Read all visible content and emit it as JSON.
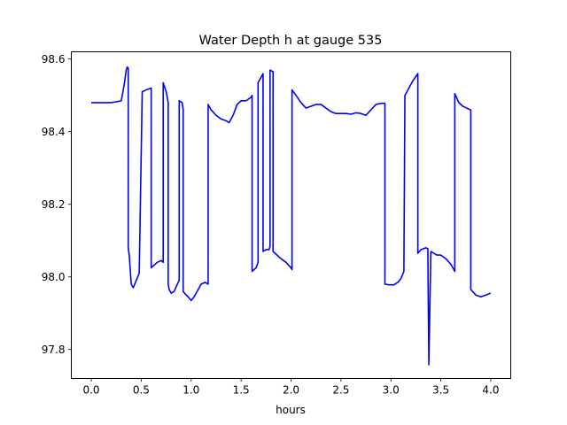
{
  "chart_data": {
    "type": "line",
    "title": "Water Depth h at gauge 535",
    "xlabel": "hours",
    "ylabel": "",
    "xlim": [
      -0.2,
      4.2
    ],
    "ylim": [
      97.72,
      98.62
    ],
    "xticks": [
      0.0,
      0.5,
      1.0,
      1.5,
      2.0,
      2.5,
      3.0,
      3.5,
      4.0
    ],
    "xtick_labels": [
      "0.0",
      "0.5",
      "1.0",
      "1.5",
      "2.0",
      "2.5",
      "3.0",
      "3.5",
      "4.0"
    ],
    "yticks": [
      97.8,
      98.0,
      98.2,
      98.4,
      98.6
    ],
    "ytick_labels": [
      "97.8",
      "98.0",
      "98.2",
      "98.4",
      "98.6"
    ],
    "grid": false,
    "series": [
      {
        "color": "#0000ff",
        "x": [
          0.0,
          0.1,
          0.2,
          0.3,
          0.33,
          0.35,
          0.36,
          0.37,
          0.37,
          0.38,
          0.39,
          0.4,
          0.42,
          0.45,
          0.48,
          0.51,
          0.51,
          0.55,
          0.6,
          0.6,
          0.62,
          0.66,
          0.7,
          0.72,
          0.72,
          0.75,
          0.77,
          0.77,
          0.78,
          0.8,
          0.83,
          0.87,
          0.88,
          0.88,
          0.91,
          0.92,
          0.92,
          0.95,
          0.97,
          1.0,
          1.03,
          1.06,
          1.1,
          1.14,
          1.17,
          1.17,
          1.2,
          1.25,
          1.3,
          1.35,
          1.38,
          1.42,
          1.46,
          1.5,
          1.55,
          1.6,
          1.61,
          1.61,
          1.65,
          1.67,
          1.67,
          1.7,
          1.72,
          1.72,
          1.75,
          1.78,
          1.79,
          1.79,
          1.82,
          1.82,
          1.86,
          1.9,
          1.95,
          2.0,
          2.01,
          2.01,
          2.05,
          2.1,
          2.15,
          2.2,
          2.25,
          2.3,
          2.35,
          2.4,
          2.45,
          2.5,
          2.55,
          2.6,
          2.65,
          2.7,
          2.75,
          2.8,
          2.85,
          2.9,
          2.93,
          2.94,
          2.94,
          2.98,
          3.03,
          3.07,
          3.1,
          3.13,
          3.14,
          3.14,
          3.18,
          3.22,
          3.27,
          3.27,
          3.3,
          3.35,
          3.37,
          3.37,
          3.38,
          3.38,
          3.4,
          3.43,
          3.46,
          3.5,
          3.55,
          3.6,
          3.64,
          3.64,
          3.68,
          3.72,
          3.76,
          3.78,
          3.8,
          3.8,
          3.85,
          3.9,
          3.95,
          4.0
        ],
        "y": [
          98.48,
          98.48,
          98.48,
          98.485,
          98.53,
          98.57,
          98.578,
          98.575,
          98.08,
          98.06,
          98.02,
          97.98,
          97.97,
          97.99,
          98.01,
          98.51,
          98.51,
          98.515,
          98.52,
          98.025,
          98.03,
          98.04,
          98.045,
          98.04,
          98.535,
          98.51,
          98.48,
          97.98,
          97.965,
          97.955,
          97.96,
          97.985,
          97.99,
          98.485,
          98.48,
          98.46,
          97.96,
          97.95,
          97.945,
          97.935,
          97.945,
          97.96,
          97.98,
          97.985,
          97.98,
          98.475,
          98.46,
          98.445,
          98.435,
          98.43,
          98.425,
          98.445,
          98.475,
          98.485,
          98.485,
          98.495,
          98.5,
          98.015,
          98.025,
          98.04,
          98.535,
          98.55,
          98.56,
          98.07,
          98.075,
          98.075,
          98.085,
          98.57,
          98.565,
          98.07,
          98.06,
          98.05,
          98.04,
          98.025,
          98.02,
          98.515,
          98.5,
          98.48,
          98.465,
          98.47,
          98.475,
          98.475,
          98.465,
          98.455,
          98.45,
          98.45,
          98.45,
          98.448,
          98.452,
          98.45,
          98.445,
          98.46,
          98.475,
          98.478,
          98.478,
          98.478,
          97.98,
          97.978,
          97.978,
          97.985,
          97.995,
          98.015,
          98.49,
          98.5,
          98.52,
          98.54,
          98.56,
          98.065,
          98.075,
          98.08,
          98.078,
          98.07,
          97.762,
          97.758,
          98.07,
          98.065,
          98.06,
          98.06,
          98.05,
          98.035,
          98.015,
          98.505,
          98.48,
          98.47,
          98.465,
          98.462,
          98.46,
          97.965,
          97.95,
          97.945,
          97.95,
          97.955
        ]
      }
    ]
  }
}
